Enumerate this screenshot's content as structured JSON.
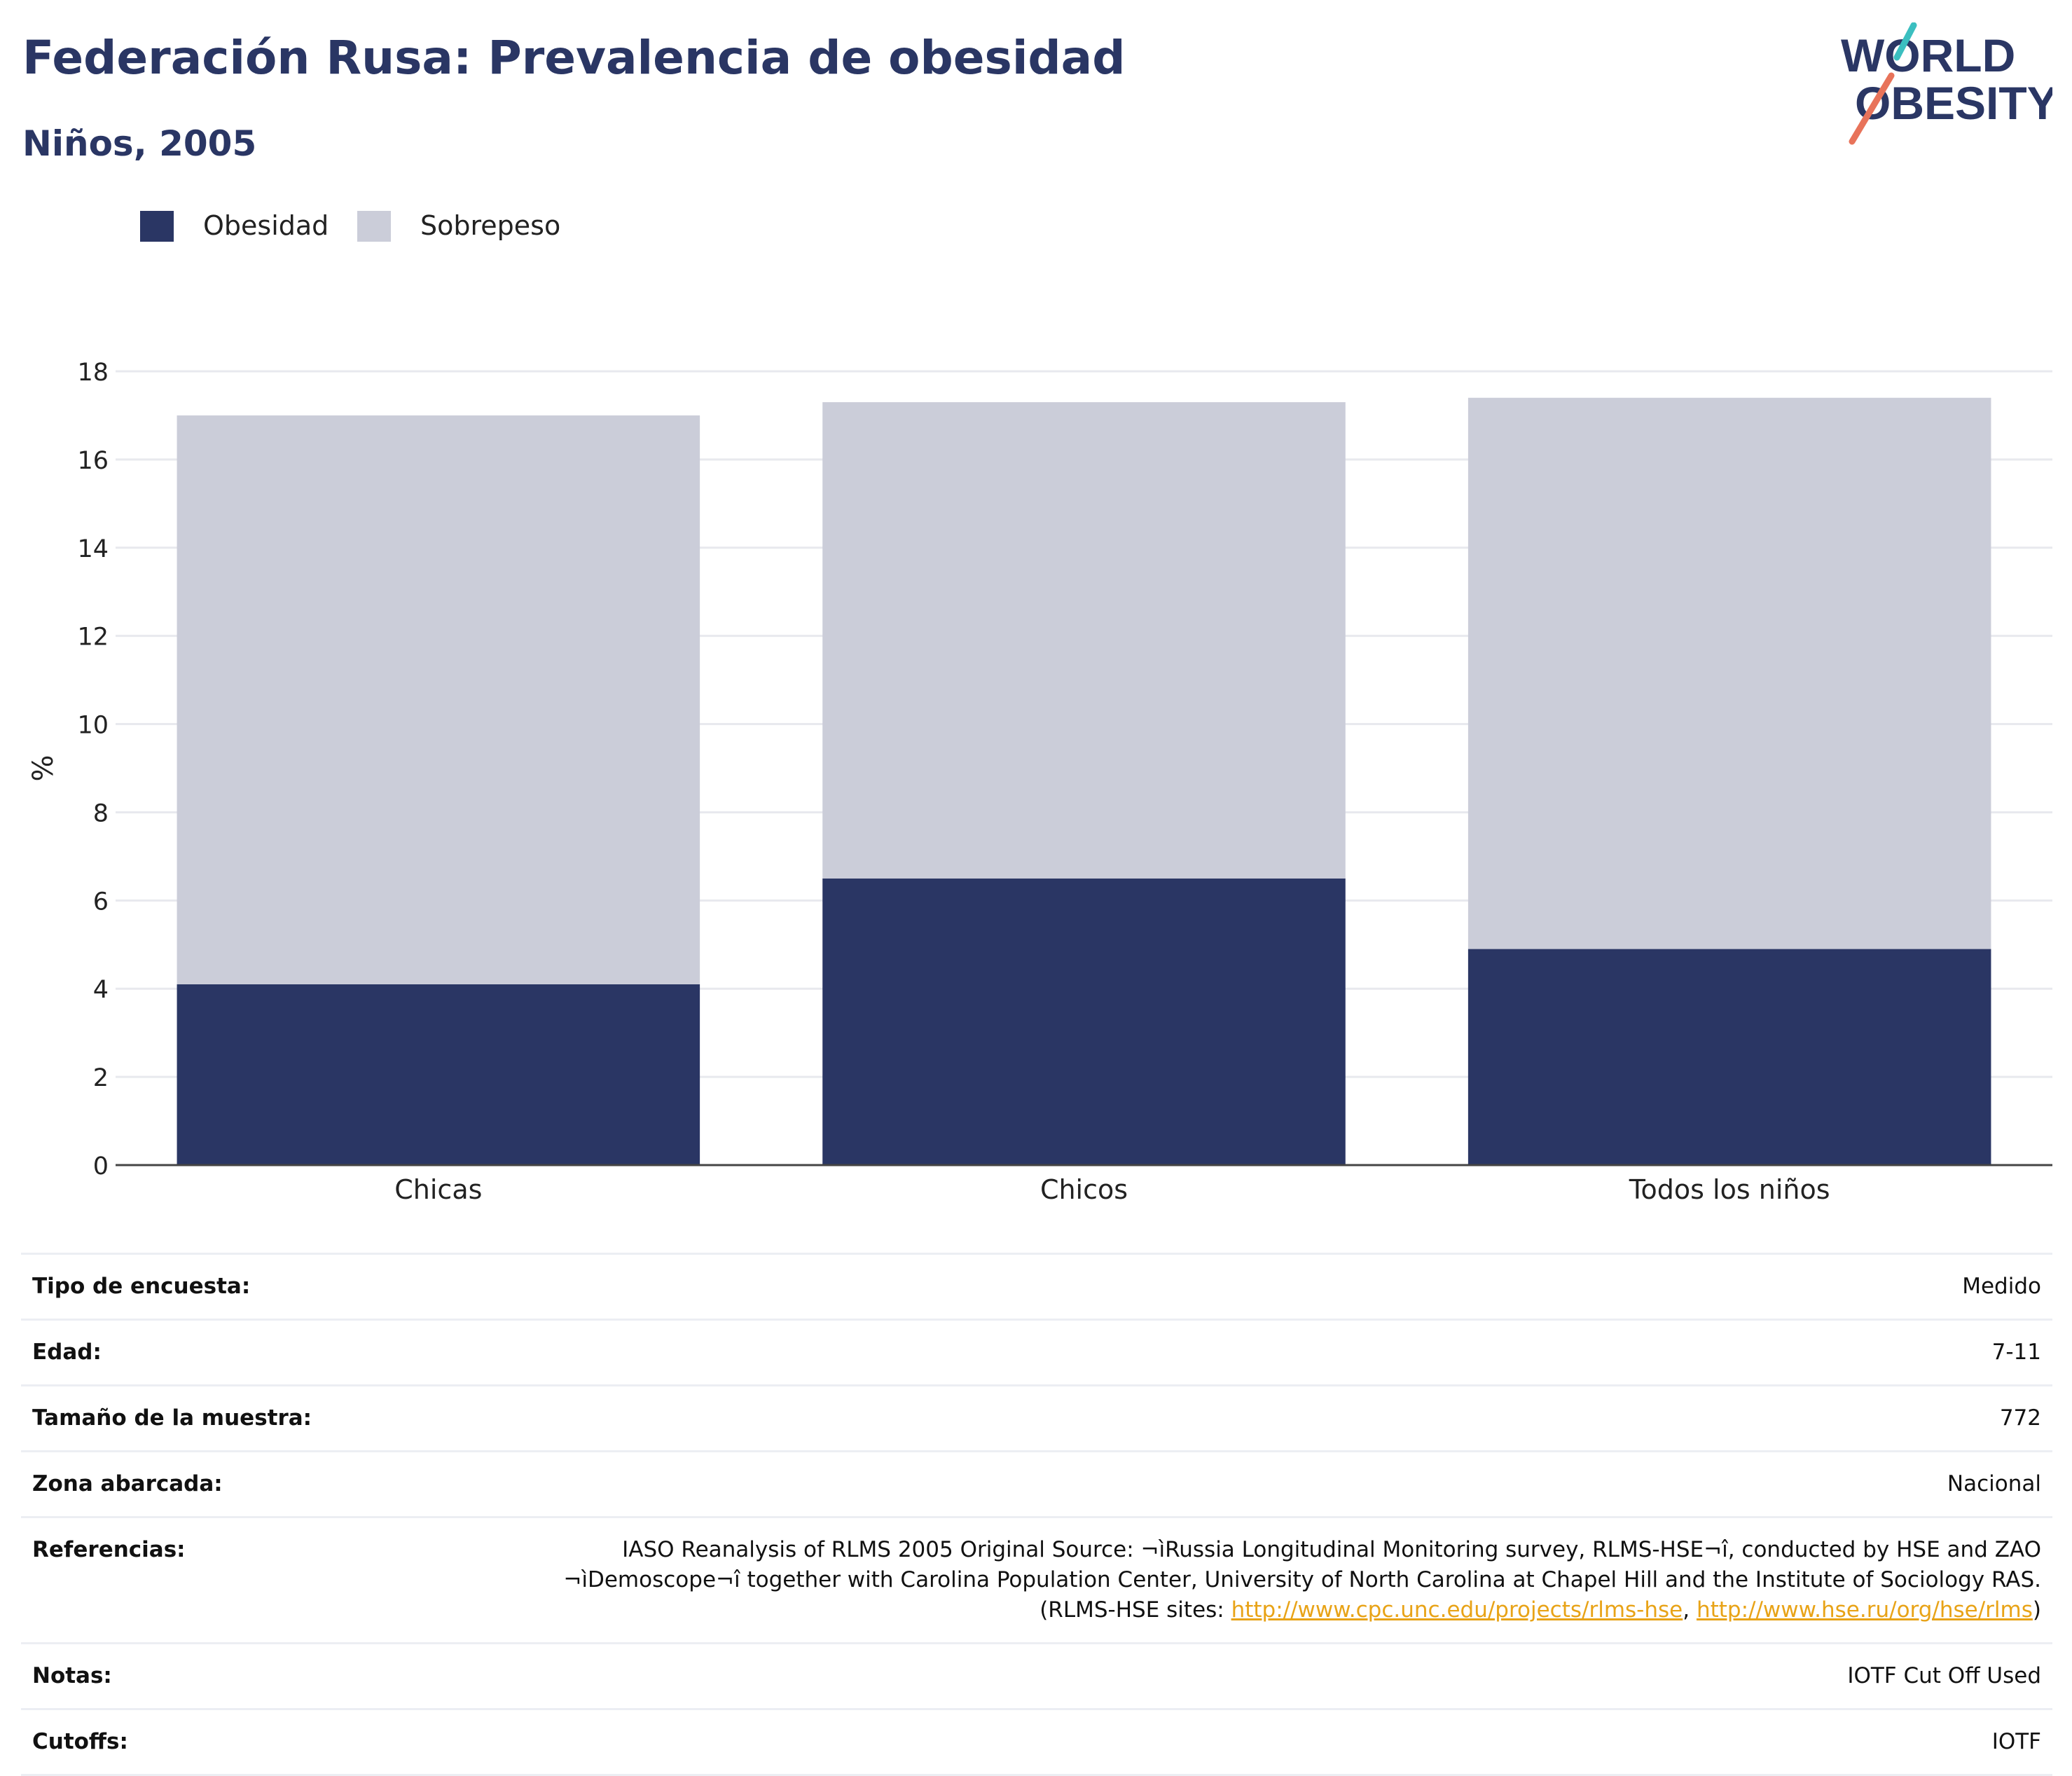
{
  "header": {
    "title": "Federación Rusa: Prevalencia de obesidad",
    "subtitle": "Niños, 2005",
    "logo_line1": "WORLD",
    "logo_line2": "OBESITY"
  },
  "legend": [
    {
      "label": "Obesidad",
      "color": "#2a3664"
    },
    {
      "label": "Sobrepeso",
      "color": "#cbcdd9"
    }
  ],
  "chart_data": {
    "type": "bar",
    "stacked": true,
    "categories": [
      "Chicas",
      "Chicos",
      "Todos los niños"
    ],
    "series": [
      {
        "name": "Obesidad",
        "color": "#2a3664",
        "values": [
          4.1,
          6.5,
          4.9
        ]
      },
      {
        "name": "Sobrepeso",
        "color": "#cbcdd9",
        "values": [
          12.9,
          10.8,
          12.5
        ]
      }
    ],
    "ylabel": "%",
    "xlabel": "",
    "ylim": [
      0,
      18
    ],
    "yticks": [
      0,
      2,
      4,
      6,
      8,
      10,
      12,
      14,
      16,
      18
    ],
    "grid": true,
    "legend_position": "top-left"
  },
  "info": {
    "survey_type": {
      "label": "Tipo de encuesta:",
      "value": "Medido"
    },
    "age": {
      "label": "Edad:",
      "value": "7-11"
    },
    "sample_size": {
      "label": "Tamaño de la muestra:",
      "value": "772"
    },
    "area": {
      "label": "Zona abarcada:",
      "value": "Nacional"
    },
    "references": {
      "label": "Referencias:",
      "text_line1": "IASO Reanalysis of RLMS 2005 Original Source: ¬ìRussia Longitudinal Monitoring survey, RLMS-HSE¬î, conducted by HSE and ZAO",
      "text_line2": "¬ìDemoscope¬î together with Carolina Population Center, University of North Carolina at Chapel Hill and the Institute of Sociology RAS.",
      "text_prefix": "(RLMS-HSE sites: ",
      "link1": "http://www.cpc.unc.edu/projects/rlms-hse",
      "separator": ", ",
      "link2": "http://www.hse.ru/org/hse/rlms",
      "text_suffix": ")"
    },
    "notes": {
      "label": "Notas:",
      "value": "IOTF Cut Off Used"
    },
    "cutoffs": {
      "label": "Cutoffs:",
      "value": "IOTF"
    }
  }
}
